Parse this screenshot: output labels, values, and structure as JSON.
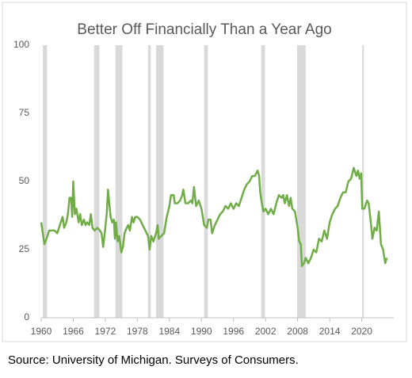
{
  "chart_data": {
    "type": "line",
    "title": "Better Off Financially Than a Year Ago",
    "source": "Source: University of Michigan. Surveys of Consumers.",
    "x": [
      1960,
      1960.3,
      1960.6,
      1961,
      1961.5,
      1962,
      1962.5,
      1963,
      1963.5,
      1964,
      1964.3,
      1964.7,
      1965,
      1965.3,
      1965.6,
      1965.8,
      1966,
      1966.3,
      1966.6,
      1967,
      1967.3,
      1967.6,
      1968,
      1968.3,
      1968.6,
      1969,
      1969.3,
      1969.6,
      1970,
      1970.5,
      1971,
      1971.3,
      1971.6,
      1972,
      1972.3,
      1972.5,
      1972.8,
      1973,
      1973.3,
      1973.6,
      1973.8,
      1974,
      1974.3,
      1974.6,
      1975,
      1975.3,
      1975.6,
      1976,
      1976.3,
      1976.6,
      1977,
      1977.3,
      1977.6,
      1978,
      1978.5,
      1979,
      1979.5,
      1980,
      1980.3,
      1980.6,
      1981,
      1981.5,
      1981.8,
      1982,
      1982.5,
      1983,
      1983.5,
      1984,
      1984.3,
      1984.8,
      1985,
      1985.5,
      1986,
      1986.4,
      1986.6,
      1987,
      1987.5,
      1988,
      1988.3,
      1988.6,
      1989,
      1989.5,
      1990,
      1990.5,
      1991,
      1991.3,
      1991.7,
      1992,
      1992.5,
      1993,
      1993.5,
      1994,
      1994.5,
      1995,
      1995.5,
      1996,
      1996.5,
      1997,
      1997.5,
      1998,
      1998.5,
      1999,
      1999.5,
      2000,
      2000.5,
      2000.8,
      2001,
      2001.3,
      2001.6,
      2002,
      2002.5,
      2003,
      2003.5,
      2004,
      2004.5,
      2005,
      2005.3,
      2005.6,
      2006,
      2006.4,
      2006.7,
      2007,
      2007.5,
      2008,
      2008.3,
      2008.6,
      2008.8,
      2009.2,
      2009.5,
      2010,
      2010.5,
      2011,
      2011.5,
      2012,
      2012.5,
      2013,
      2013.5,
      2014,
      2014.5,
      2015,
      2015.5,
      2016,
      2016.5,
      2017,
      2017.5,
      2018,
      2018.5,
      2019,
      2019.3,
      2019.6,
      2019.9,
      2020.1,
      2020.5,
      2021,
      2021.3,
      2021.7,
      2022,
      2022.4,
      2022.8,
      2023.2,
      2023.6,
      2024,
      2024.4,
      2024.7
    ],
    "series": [
      {
        "name": "Better off",
        "color": "#70ad47",
        "values": [
          35,
          31,
          27,
          29,
          32,
          32,
          32,
          31,
          34,
          37,
          33,
          35,
          38,
          44,
          44,
          37,
          50,
          38,
          40,
          35,
          38,
          34,
          36,
          34,
          35,
          34,
          38,
          33,
          32,
          33,
          32,
          31,
          26,
          33,
          39,
          47,
          41,
          37,
          35,
          36,
          29,
          35,
          28,
          30,
          24,
          26,
          31,
          33,
          34,
          32,
          37,
          35,
          37,
          37,
          36,
          34,
          32,
          30,
          25,
          30,
          28,
          31,
          34,
          29,
          30,
          31,
          37,
          41,
          45,
          45,
          42,
          42,
          43,
          45,
          47,
          42,
          42,
          43,
          42,
          48,
          41,
          43,
          40,
          34,
          33,
          36,
          36,
          31,
          34,
          36,
          38,
          39,
          41,
          40,
          42,
          40,
          42,
          41,
          44,
          47,
          49,
          50,
          52,
          52,
          54,
          52,
          46,
          42,
          39,
          40,
          38,
          40,
          38,
          42,
          45,
          44,
          45,
          42,
          45,
          41,
          44,
          40,
          39,
          33,
          28,
          27,
          19,
          20,
          22,
          20,
          22,
          25,
          24,
          29,
          28,
          32,
          29,
          35,
          38,
          40,
          41,
          44,
          46,
          46,
          50,
          51,
          55,
          52,
          54,
          51,
          53,
          40,
          40,
          43,
          42,
          35,
          29,
          33,
          32,
          39,
          27,
          25,
          20,
          22
        ]
      }
    ],
    "recessions": [
      [
        1960.3,
        1961.1
      ],
      [
        1969.9,
        1970.9
      ],
      [
        1973.9,
        1975.2
      ],
      [
        1980.0,
        1980.5
      ],
      [
        1981.5,
        1982.9
      ],
      [
        1990.5,
        1991.2
      ],
      [
        2001.2,
        2001.9
      ],
      [
        2007.9,
        2009.5
      ],
      [
        2020.1,
        2020.3
      ]
    ],
    "recession_color": "#d9d9d9",
    "xlim": [
      1960,
      2026
    ],
    "xticks": [
      1960,
      1966,
      1972,
      1978,
      1984,
      1990,
      1996,
      2002,
      2008,
      2014,
      2020
    ],
    "ylim": [
      0,
      100
    ],
    "yticks": [
      0,
      25,
      50,
      75,
      100
    ],
    "grid": false
  }
}
